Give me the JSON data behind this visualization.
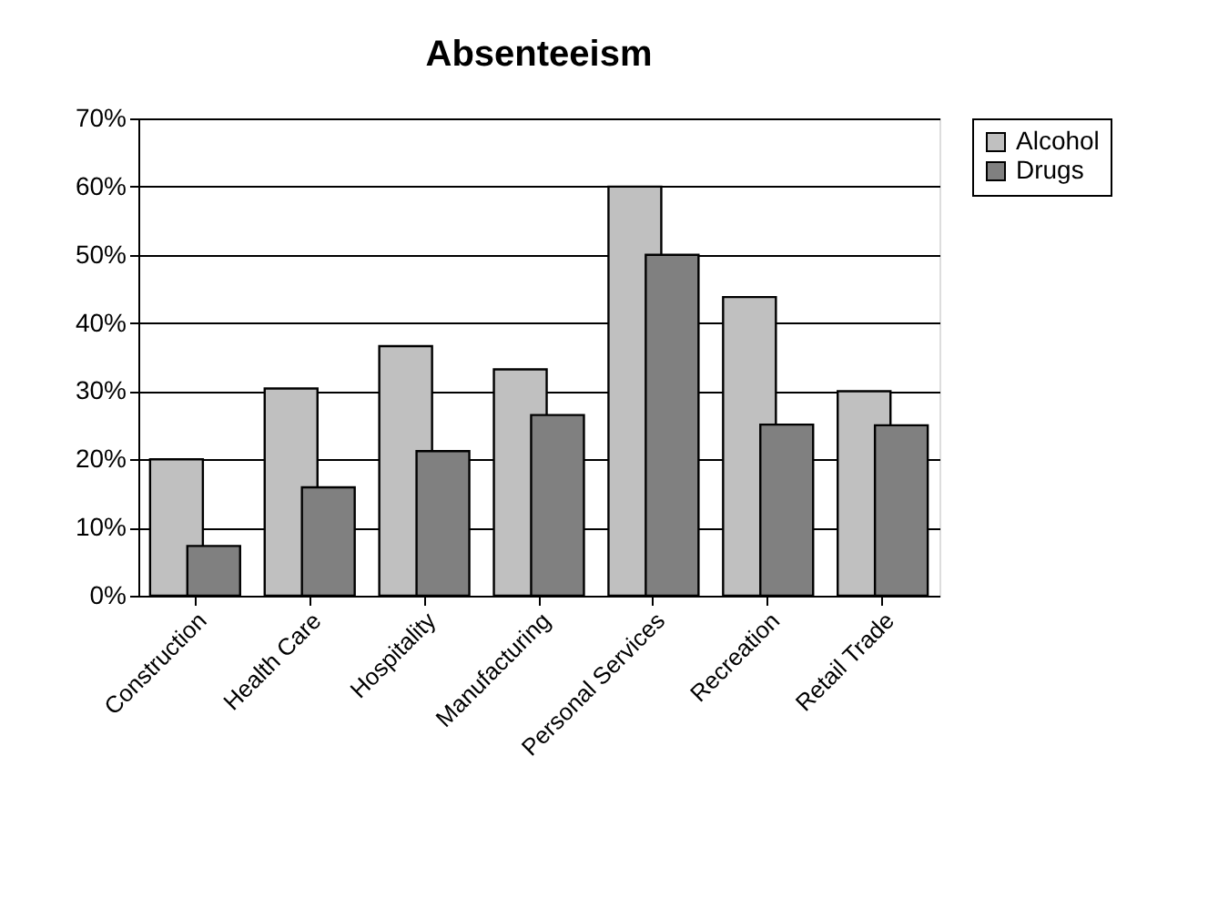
{
  "chart_data": {
    "type": "bar",
    "title": "Absenteeism",
    "categories": [
      "Construction",
      "Health Care",
      "Hospitality",
      "Manufacturing",
      "Personal Services",
      "Recreation",
      "Retail Trade"
    ],
    "series": [
      {
        "name": "Alcohol",
        "color": "#c0c0c0",
        "values": [
          20,
          30.4,
          36.6,
          33.2,
          60,
          43.8,
          30
        ]
      },
      {
        "name": "Drugs",
        "color": "#808080",
        "values": [
          7.3,
          15.9,
          21.2,
          26.5,
          50,
          25.1,
          25
        ]
      }
    ],
    "ylim": [
      0,
      70
    ],
    "yticks": [
      {
        "value": 0,
        "label": "0%"
      },
      {
        "value": 10,
        "label": "10%"
      },
      {
        "value": 20,
        "label": "20%"
      },
      {
        "value": 30,
        "label": "30%"
      },
      {
        "value": 40,
        "label": "40%"
      },
      {
        "value": 50,
        "label": "50%"
      },
      {
        "value": 60,
        "label": "60%"
      },
      {
        "value": 70,
        "label": "70%"
      }
    ],
    "grid": "y",
    "legend": "right"
  }
}
